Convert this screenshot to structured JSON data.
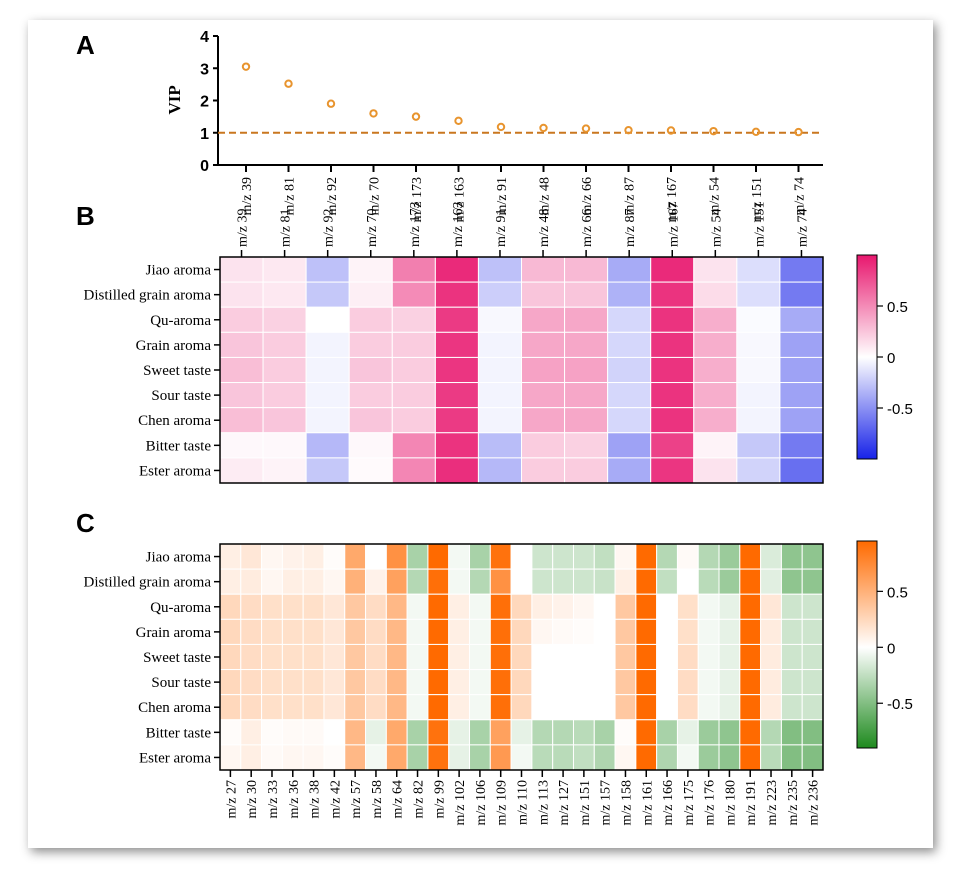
{
  "chart_data": [
    {
      "panel": "A",
      "type": "scatter",
      "ylabel": "VIP",
      "ylim": [
        0,
        4
      ],
      "yticks": [
        "0",
        "1",
        "2",
        "3",
        "4"
      ],
      "threshold": 1,
      "categories": [
        "m/z 39",
        "m/z 81",
        "m/z 92",
        "m/z 70",
        "m/z 173",
        "m/z 163",
        "m/z 91",
        "m/z 48",
        "m/z 66",
        "m/z 87",
        "m/z 167",
        "m/z 54",
        "m/z 151",
        "m/z 74"
      ],
      "values": [
        3.05,
        2.52,
        1.9,
        1.6,
        1.5,
        1.37,
        1.18,
        1.15,
        1.13,
        1.08,
        1.07,
        1.05,
        1.03,
        1.02
      ],
      "colors": {
        "marker": "#e8942e",
        "threshold": "#c9771f"
      }
    },
    {
      "panel": "B",
      "type": "heatmap",
      "rows": [
        "Jiao aroma",
        "Distilled grain aroma",
        "Qu-aroma",
        "Grain aroma",
        "Sweet taste",
        "Sour taste",
        "Chen aroma",
        "Bitter taste",
        "Ester aroma"
      ],
      "columns": [
        "m/z 39",
        "m/z 81",
        "m/z 92",
        "m/z 70",
        "m/z 173",
        "m/z 163",
        "m/z 91",
        "m/z 48",
        "m/z 66",
        "m/z 87",
        "m/z 167",
        "m/z 54",
        "m/z 151",
        "m/z 74"
      ],
      "values": [
        [
          0.12,
          0.1,
          -0.28,
          0.05,
          0.55,
          0.92,
          -0.28,
          0.3,
          0.3,
          -0.38,
          0.92,
          0.12,
          -0.15,
          -0.6
        ],
        [
          0.12,
          0.1,
          -0.25,
          0.07,
          0.5,
          0.88,
          -0.22,
          0.25,
          0.25,
          -0.35,
          0.88,
          0.15,
          -0.15,
          -0.6
        ],
        [
          0.22,
          0.2,
          0.0,
          0.22,
          0.2,
          0.85,
          -0.03,
          0.38,
          0.38,
          -0.18,
          0.88,
          0.35,
          -0.02,
          -0.38
        ],
        [
          0.25,
          0.22,
          -0.05,
          0.22,
          0.22,
          0.87,
          -0.05,
          0.38,
          0.38,
          -0.18,
          0.88,
          0.35,
          -0.03,
          -0.42
        ],
        [
          0.28,
          0.22,
          -0.05,
          0.25,
          0.22,
          0.87,
          -0.05,
          0.4,
          0.4,
          -0.2,
          0.88,
          0.35,
          -0.03,
          -0.42
        ],
        [
          0.25,
          0.22,
          -0.05,
          0.22,
          0.22,
          0.85,
          -0.05,
          0.38,
          0.38,
          -0.18,
          0.88,
          0.35,
          -0.05,
          -0.42
        ],
        [
          0.28,
          0.25,
          -0.05,
          0.25,
          0.22,
          0.85,
          -0.05,
          0.38,
          0.38,
          -0.18,
          0.88,
          0.35,
          -0.05,
          -0.42
        ],
        [
          0.03,
          0.03,
          -0.32,
          0.03,
          0.52,
          0.88,
          -0.3,
          0.22,
          0.2,
          -0.42,
          0.82,
          0.05,
          -0.25,
          -0.6
        ],
        [
          0.08,
          0.05,
          -0.25,
          0.02,
          0.52,
          0.9,
          -0.32,
          0.22,
          0.22,
          -0.38,
          0.87,
          0.12,
          -0.2,
          -0.65
        ]
      ],
      "colorbar": {
        "ticks": [
          "0.5",
          "0",
          "-0.5"
        ],
        "min": -1.0,
        "max": 1.0,
        "pos_color": "#e8176e",
        "neg_color": "#1722e8"
      }
    },
    {
      "panel": "C",
      "type": "heatmap",
      "rows": [
        "Jiao aroma",
        "Distilled grain aroma",
        "Qu-aroma",
        "Grain aroma",
        "Sweet taste",
        "Sour taste",
        "Chen aroma",
        "Bitter taste",
        "Ester aroma"
      ],
      "columns": [
        "m/z 27",
        "m/z 30",
        "m/z 33",
        "m/z 36",
        "m/z 38",
        "m/z 42",
        "m/z 57",
        "m/z 58",
        "m/z 64",
        "m/z 82",
        "m/z 99",
        "m/z 102",
        "m/z 106",
        "m/z 109",
        "m/z 110",
        "m/z 113",
        "m/z 127",
        "m/z 151",
        "m/z 157",
        "m/z 158",
        "m/z 161",
        "m/z 166",
        "m/z 175",
        "m/z 176",
        "m/z 180",
        "m/z 191",
        "m/z 223",
        "m/z 235",
        "m/z 236"
      ],
      "values": [
        [
          0.1,
          0.15,
          0.05,
          0.08,
          0.1,
          0.02,
          0.55,
          0.0,
          0.7,
          -0.35,
          0.95,
          -0.05,
          -0.35,
          0.9,
          0.0,
          -0.2,
          -0.2,
          -0.2,
          -0.25,
          0.05,
          0.95,
          -0.3,
          0.03,
          -0.3,
          -0.4,
          0.95,
          -0.15,
          -0.45,
          -0.45
        ],
        [
          0.1,
          0.12,
          0.05,
          0.1,
          0.1,
          0.05,
          0.5,
          0.08,
          0.6,
          -0.3,
          0.92,
          -0.05,
          -0.3,
          0.7,
          0.0,
          -0.2,
          -0.2,
          -0.2,
          -0.22,
          0.1,
          0.95,
          -0.25,
          0.0,
          -0.28,
          -0.4,
          0.95,
          -0.12,
          -0.45,
          -0.45
        ],
        [
          0.25,
          0.22,
          0.2,
          0.2,
          0.2,
          0.15,
          0.35,
          0.22,
          0.45,
          -0.05,
          0.95,
          0.1,
          -0.05,
          0.92,
          0.25,
          0.1,
          0.08,
          0.05,
          0.0,
          0.35,
          0.95,
          0.0,
          0.2,
          -0.05,
          -0.1,
          0.95,
          0.15,
          -0.2,
          -0.2
        ],
        [
          0.25,
          0.22,
          0.2,
          0.2,
          0.2,
          0.15,
          0.35,
          0.22,
          0.45,
          -0.05,
          0.95,
          0.1,
          -0.05,
          0.92,
          0.25,
          0.05,
          0.03,
          0.02,
          0.0,
          0.35,
          0.95,
          0.0,
          0.2,
          -0.05,
          -0.1,
          0.95,
          0.12,
          -0.2,
          -0.2
        ],
        [
          0.25,
          0.22,
          0.2,
          0.2,
          0.2,
          0.15,
          0.35,
          0.22,
          0.45,
          -0.05,
          0.95,
          0.1,
          -0.05,
          0.92,
          0.25,
          0.0,
          0.0,
          0.0,
          0.0,
          0.35,
          0.95,
          0.0,
          0.22,
          -0.05,
          -0.1,
          0.95,
          0.12,
          -0.2,
          -0.2
        ],
        [
          0.25,
          0.22,
          0.2,
          0.2,
          0.2,
          0.15,
          0.35,
          0.22,
          0.45,
          -0.05,
          0.95,
          0.1,
          -0.05,
          0.92,
          0.25,
          0.0,
          0.0,
          0.0,
          0.0,
          0.35,
          0.95,
          0.0,
          0.22,
          -0.05,
          -0.1,
          0.95,
          0.12,
          -0.2,
          -0.2
        ],
        [
          0.25,
          0.22,
          0.2,
          0.2,
          0.2,
          0.15,
          0.35,
          0.22,
          0.45,
          -0.05,
          0.95,
          0.1,
          -0.05,
          0.92,
          0.25,
          0.0,
          0.0,
          0.0,
          0.0,
          0.35,
          0.95,
          0.0,
          0.22,
          -0.05,
          -0.1,
          0.95,
          0.12,
          -0.2,
          -0.2
        ],
        [
          0.02,
          0.1,
          0.02,
          0.03,
          0.03,
          0.0,
          0.45,
          -0.1,
          0.55,
          -0.35,
          0.9,
          -0.1,
          -0.35,
          0.6,
          -0.1,
          -0.3,
          -0.3,
          -0.28,
          -0.35,
          0.02,
          0.95,
          -0.35,
          -0.1,
          -0.4,
          -0.45,
          0.95,
          -0.3,
          -0.5,
          -0.5
        ],
        [
          0.05,
          0.1,
          0.03,
          0.05,
          0.05,
          0.02,
          0.45,
          -0.05,
          0.55,
          -0.35,
          0.9,
          -0.1,
          -0.35,
          0.65,
          -0.05,
          -0.28,
          -0.28,
          -0.25,
          -0.32,
          0.05,
          0.95,
          -0.32,
          -0.05,
          -0.4,
          -0.45,
          0.95,
          -0.28,
          -0.5,
          -0.5
        ]
      ],
      "colorbar": {
        "ticks": [
          "0.5",
          "0",
          "-0.5"
        ],
        "min": -0.9,
        "max": 0.95,
        "pos_color": "#ff6a00",
        "neg_color": "#1e8a1e"
      }
    }
  ],
  "labels": {
    "panel_a": "A",
    "panel_b": "B",
    "panel_c": "C"
  }
}
